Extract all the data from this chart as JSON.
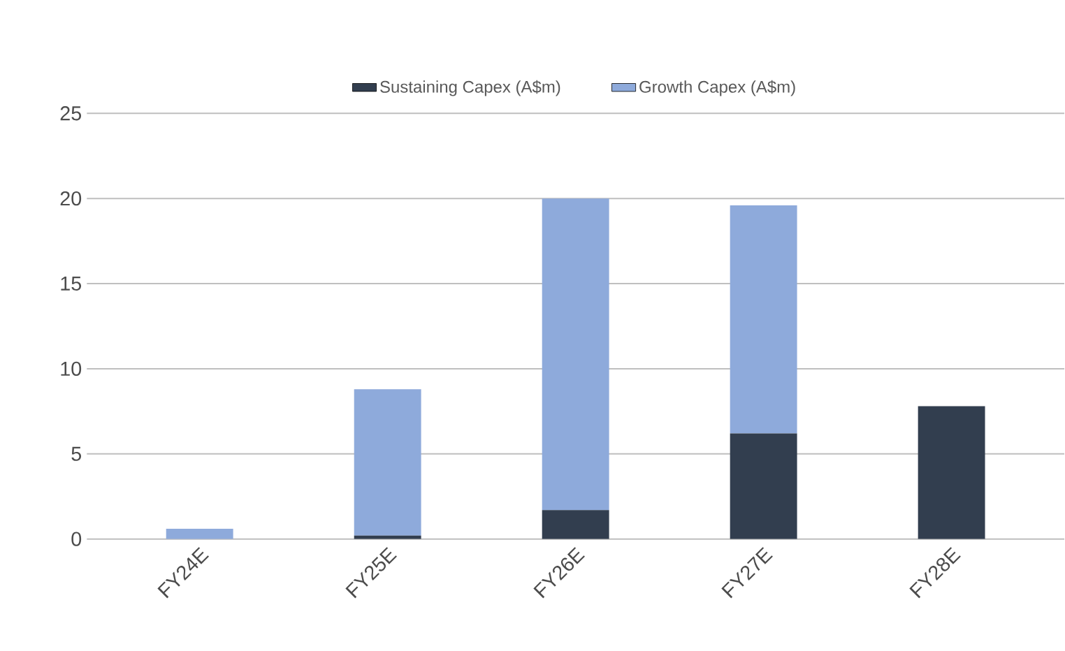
{
  "chart_data": {
    "type": "bar",
    "stacked": true,
    "categories": [
      "FY24E",
      "FY25E",
      "FY26E",
      "FY27E",
      "FY28E"
    ],
    "series": [
      {
        "name": "Sustaining Capex (A$m)",
        "color": "#323e4f",
        "values": [
          0,
          0.2,
          1.7,
          6.2,
          7.8
        ]
      },
      {
        "name": "Growth Capex (A$m)",
        "color": "#8eaadb",
        "values": [
          0.6,
          8.6,
          18.3,
          13.4,
          0
        ]
      }
    ],
    "ylim": [
      0,
      25
    ],
    "yticks": [
      0,
      5,
      10,
      15,
      20,
      25
    ],
    "grid": "y",
    "legend": "top"
  }
}
